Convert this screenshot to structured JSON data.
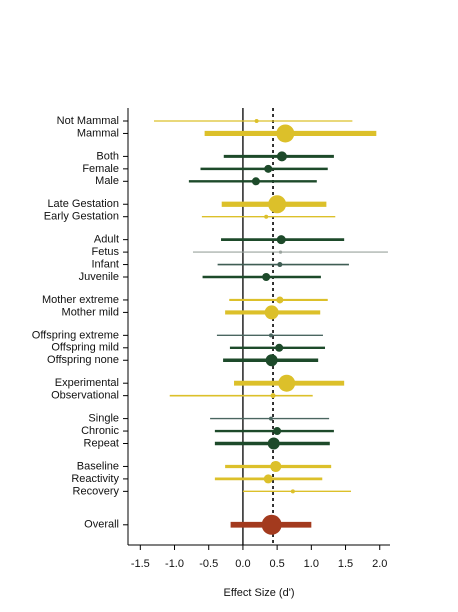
{
  "chart_data": {
    "type": "forest",
    "xlabel": "Effect Size (d')",
    "categories": [
      "Not Mammal",
      "Mammal",
      null,
      "Both",
      "Female",
      "Male",
      null,
      "Late Gestation",
      "Early Gestation",
      null,
      "Adult",
      "Fetus",
      "Infant",
      "Juvenile",
      null,
      "Mother extreme",
      "Mother mild",
      null,
      "Offspring extreme",
      "Offspring mild",
      "Offspring none",
      null,
      "Experimental",
      "Observational",
      null,
      "Single",
      "Chronic",
      "Repeat",
      null,
      "Baseline",
      "Reactivity",
      "Recovery",
      null,
      null,
      "Overall"
    ],
    "values": [
      0.2,
      0.62,
      null,
      0.57,
      0.37,
      0.19,
      null,
      0.5,
      0.34,
      null,
      0.56,
      0.55,
      0.54,
      0.34,
      null,
      0.54,
      0.42,
      null,
      0.41,
      0.53,
      0.42,
      null,
      0.64,
      0.44,
      null,
      0.41,
      0.5,
      0.45,
      null,
      0.48,
      0.37,
      0.73,
      null,
      null,
      0.42
    ],
    "lows": [
      -1.3,
      -0.56,
      null,
      -0.28,
      -0.62,
      -0.79,
      null,
      -0.31,
      -0.6,
      null,
      -0.32,
      -0.73,
      -0.37,
      -0.59,
      null,
      -0.2,
      -0.26,
      null,
      -0.38,
      -0.19,
      -0.29,
      null,
      -0.13,
      -1.07,
      null,
      -0.48,
      -0.41,
      -0.41,
      null,
      -0.26,
      -0.41,
      0.0,
      null,
      null,
      -0.18
    ],
    "highs": [
      1.6,
      1.95,
      null,
      1.33,
      1.24,
      1.08,
      null,
      1.22,
      1.35,
      null,
      1.48,
      2.12,
      1.55,
      1.14,
      null,
      1.24,
      1.13,
      null,
      1.17,
      1.2,
      1.1,
      null,
      1.48,
      1.02,
      null,
      1.26,
      1.33,
      1.27,
      null,
      1.29,
      1.16,
      1.58,
      null,
      null,
      1.0
    ],
    "sizes": [
      1,
      8,
      null,
      4,
      3,
      3,
      null,
      8,
      1,
      null,
      3.5,
      0.6,
      1.5,
      3,
      null,
      2.5,
      6,
      null,
      1,
      3,
      5,
      null,
      7.5,
      1.5,
      null,
      1,
      3,
      5,
      null,
      4.5,
      3.5,
      1,
      null,
      null,
      9
    ],
    "colors": [
      "#dcc02a",
      "#dcc02a",
      null,
      "#1d4a2a",
      "#1d4a2a",
      "#1d4a2a",
      null,
      "#dcc02a",
      "#dcc02a",
      null,
      "#1d4a2a",
      "#9aa39e",
      "#3f5e54",
      "#1d4a2a",
      null,
      "#dcc02a",
      "#dcc02a",
      null,
      "#4a6660",
      "#1d4a2a",
      "#1d4a2a",
      null,
      "#dcc02a",
      "#dcc02a",
      null,
      "#4a6660",
      "#1d4a2a",
      "#1d4a2a",
      null,
      "#dcc02a",
      "#dcc02a",
      "#dcc02a",
      null,
      null,
      "#a33a1e"
    ],
    "reference": 0.44,
    "xlim": [
      -1.68,
      2.15
    ],
    "xticks": [
      -1.5,
      -1.0,
      -0.5,
      0.0,
      0.5,
      1.0,
      1.5,
      2.0
    ]
  }
}
